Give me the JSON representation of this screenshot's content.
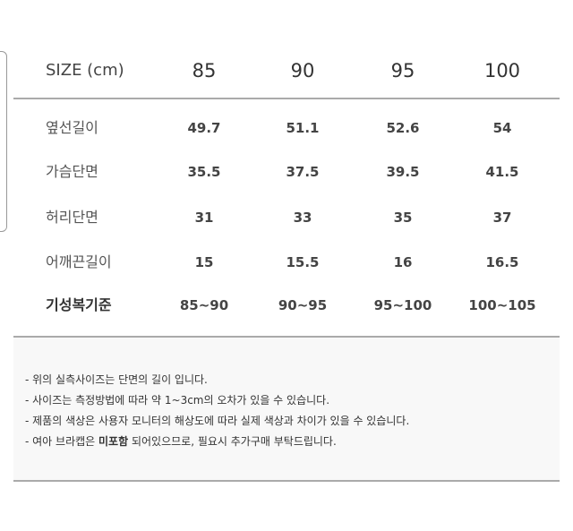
{
  "table": {
    "header": {
      "label": "SIZE (cm)",
      "sizes": [
        "85",
        "90",
        "95",
        "100"
      ]
    },
    "rows": [
      {
        "label": "옆선길이",
        "values": [
          "49.7",
          "51.1",
          "52.6",
          "54"
        ]
      },
      {
        "label": "가슴단면",
        "values": [
          "35.5",
          "37.5",
          "39.5",
          "41.5"
        ]
      },
      {
        "label": "허리단면",
        "values": [
          "31",
          "33",
          "35",
          "37"
        ]
      },
      {
        "label": "어깨끈길이",
        "values": [
          "15",
          "15.5",
          "16",
          "16.5"
        ]
      },
      {
        "label": "기성복기준",
        "values": [
          "85~90",
          "90~95",
          "95~100",
          "100~105"
        ]
      }
    ]
  },
  "notes": {
    "line1": "- 위의 실측사이즈는 단면의 길이 입니다.",
    "line2": "- 사이즈는 측정방법에 따라 약 1~3cm의 오차가 있을 수 있습니다.",
    "line3": "- 제품의 색상은 사용자 모니터의 해상도에 따라 실제 색상과 차이가 있을 수 있습니다.",
    "line4_pre": "- 여아 브라캡은 ",
    "line4_bold": "미포함",
    "line4_post": " 되어있으므로, 필요시 추가구매 부탁드립니다."
  }
}
